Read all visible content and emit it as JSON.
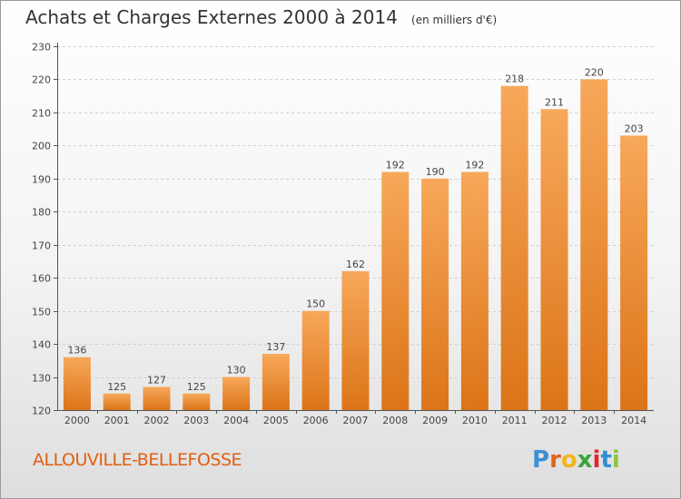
{
  "title": "Achats et Charges Externes 2000 à 2014",
  "subtitle": "(en milliers d'€)",
  "commune": "ALLOUVILLE-BELLEFOSSE",
  "logo": {
    "letters": [
      "P",
      "r",
      "o",
      "x",
      "i",
      "t",
      "i"
    ],
    "colors": [
      "#3a8fd6",
      "#e2631b",
      "#f2b51e",
      "#3aa43a",
      "#e0262e",
      "#2f8fd6",
      "#8cc63f"
    ]
  },
  "colors": {
    "bar_light": "#f7a85a",
    "bar_dark": "#dc7418",
    "axis": "#555555",
    "grid": "#d0d0d0",
    "commune_text": "#e25e12"
  },
  "chart_data": {
    "type": "bar",
    "categories": [
      "2000",
      "2001",
      "2002",
      "2003",
      "2004",
      "2005",
      "2006",
      "2007",
      "2008",
      "2009",
      "2010",
      "2011",
      "2012",
      "2013",
      "2014"
    ],
    "values": [
      136,
      125,
      127,
      125,
      130,
      137,
      150,
      162,
      192,
      190,
      192,
      218,
      211,
      220,
      203
    ],
    "yticks": [
      120,
      130,
      140,
      150,
      160,
      170,
      180,
      190,
      200,
      210,
      220,
      230
    ],
    "ylim": [
      120,
      230
    ],
    "grid": true,
    "data_labels": true
  }
}
